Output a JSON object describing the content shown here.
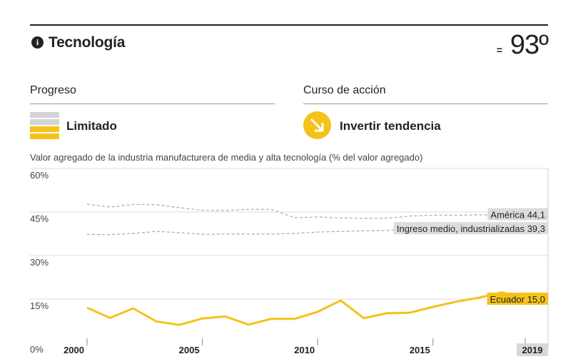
{
  "header": {
    "title": "Tecnología",
    "rank_change": "=",
    "rank": "93º"
  },
  "progress": {
    "label": "Progreso",
    "status": "Limitado",
    "colors": {
      "filled": "#f5c21b",
      "empty": "#d4d4d4"
    },
    "levels_filled": 2,
    "levels_total": 4
  },
  "action": {
    "label": "Curso de acción",
    "status": "Invertir tendencia",
    "icon": "arrow-down-right-icon",
    "color": "#f5c21b"
  },
  "chart_data": {
    "type": "line",
    "title": "Valor agregado de la industria manufacturera de media y alta tecnología (% del valor agregado)",
    "ylim": [
      0,
      60
    ],
    "yticks": [
      0,
      15,
      30,
      45,
      60
    ],
    "ytick_labels": [
      "0%",
      "15%",
      "30%",
      "45%",
      "60%"
    ],
    "xlim": [
      2000,
      2019
    ],
    "xticks": [
      2000,
      2005,
      2010,
      2015,
      2019
    ],
    "xtick_labels": [
      "2000",
      "2005",
      "2010",
      "2015",
      "2019"
    ],
    "x": [
      2000,
      2001,
      2002,
      2003,
      2004,
      2005,
      2006,
      2007,
      2008,
      2009,
      2010,
      2011,
      2012,
      2013,
      2014,
      2015,
      2016,
      2017,
      2018,
      2019
    ],
    "series": [
      {
        "name": "Ecuador",
        "end_label": "Ecuador 15,0",
        "style": "solid",
        "color": "#f5c21b",
        "values": [
          12.0,
          8.5,
          11.8,
          7.3,
          6.1,
          8.3,
          9.0,
          6.2,
          8.2,
          8.2,
          10.6,
          14.5,
          8.4,
          10.1,
          10.3,
          12.3,
          14.1,
          15.5,
          17.3,
          15.0
        ]
      },
      {
        "name": "América",
        "end_label": "América 44,1",
        "style": "dashed",
        "color": "#aaaaaa",
        "values": [
          47.7,
          46.7,
          47.6,
          47.5,
          46.5,
          45.6,
          45.5,
          45.9,
          45.9,
          43.0,
          43.3,
          42.9,
          42.8,
          42.8,
          43.6,
          43.9,
          43.9,
          44.0,
          44.1,
          44.1
        ]
      },
      {
        "name": "Ingreso medio, industrializadas",
        "end_label": "Ingreso medio, industrializadas 39,3",
        "style": "dashed",
        "color": "#aaaaaa",
        "values": [
          37.3,
          37.2,
          37.6,
          38.3,
          37.9,
          37.3,
          37.4,
          37.4,
          37.4,
          37.6,
          38.1,
          38.3,
          38.5,
          38.6,
          39.1,
          39.2,
          39.2,
          39.3,
          39.3,
          39.3
        ]
      }
    ],
    "grid": true
  }
}
